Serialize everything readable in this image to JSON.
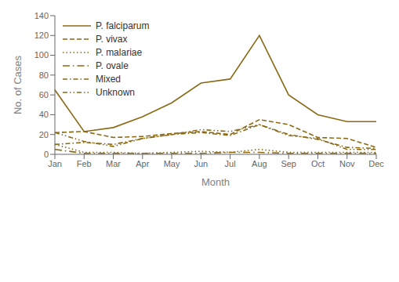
{
  "chart_data": {
    "type": "line",
    "xlabel": "Month",
    "ylabel": "No. of Cases",
    "categories": [
      "Jan",
      "Feb",
      "Mar",
      "Apr",
      "May",
      "Jun",
      "Jul",
      "Aug",
      "Sep",
      "Oct",
      "Nov",
      "Dec"
    ],
    "series": [
      {
        "name": "P. falciparum",
        "values": [
          65,
          23,
          27,
          38,
          52,
          72,
          76,
          120,
          60,
          40,
          33,
          33
        ],
        "line_style": "solid"
      },
      {
        "name": "P. vivax",
        "values": [
          22,
          23,
          17,
          18,
          21,
          23,
          20,
          35,
          30,
          17,
          16,
          7
        ],
        "line_style": "dashed"
      },
      {
        "name": "P. malariae",
        "values": [
          10,
          2,
          2,
          1,
          2,
          3,
          2,
          5,
          2,
          2,
          2,
          2
        ],
        "line_style": "dotted"
      },
      {
        "name": "P. ovale",
        "values": [
          5,
          1,
          1,
          1,
          1,
          1,
          2,
          2,
          1,
          1,
          1,
          1
        ],
        "line_style": "longdashdot"
      },
      {
        "name": "Mixed",
        "values": [
          10,
          12,
          10,
          16,
          20,
          22,
          19,
          30,
          20,
          15,
          7,
          6
        ],
        "line_style": "dashdot"
      },
      {
        "name": "Unknown",
        "values": [
          22,
          13,
          8,
          16,
          20,
          25,
          23,
          30,
          19,
          16,
          5,
          5
        ],
        "line_style": "dashdotdot"
      }
    ],
    "color": "#8B6914",
    "ylim": [
      0,
      140
    ],
    "yticks": [
      0,
      20,
      40,
      60,
      80,
      100,
      120,
      140
    ],
    "legend": "upper left",
    "grid": false
  }
}
